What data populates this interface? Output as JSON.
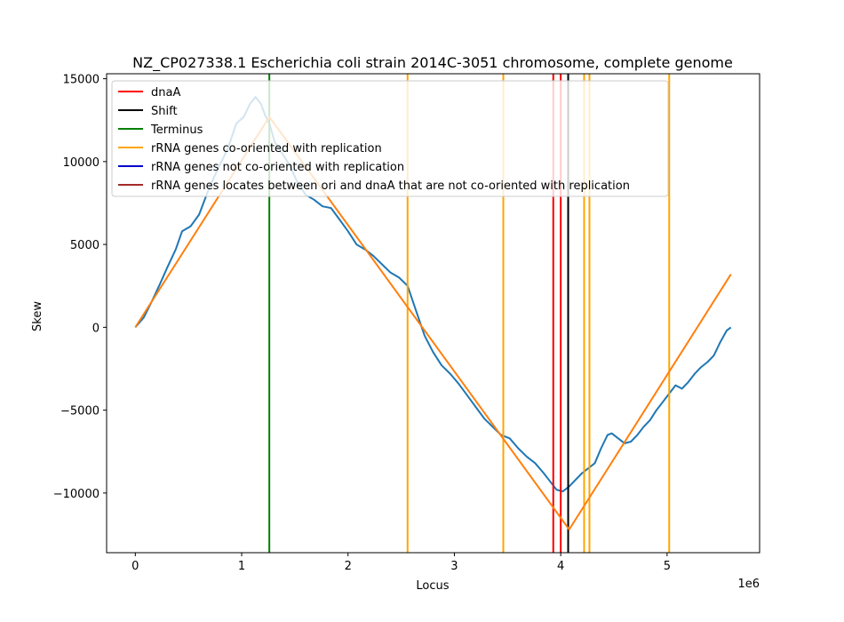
{
  "chart_data": {
    "type": "line",
    "title": "NZ_CP027338.1 Escherichia coli strain 2014C-3051 chromosome, complete genome",
    "xlabel": "Locus",
    "ylabel": "Skew",
    "x_offset_label": "1e6",
    "xlim": [
      -270000,
      5870000
    ],
    "ylim": [
      -13600,
      15300
    ],
    "xticks": [
      0,
      1000000,
      2000000,
      3000000,
      4000000,
      5000000
    ],
    "xtick_labels": [
      "0",
      "1",
      "2",
      "3",
      "4",
      "5"
    ],
    "yticks": [
      -10000,
      -5000,
      0,
      5000,
      10000,
      15000
    ],
    "ytick_labels": [
      "−10000",
      "−5000",
      "0",
      "5000",
      "10000",
      "15000"
    ],
    "grid": false,
    "legend_position": "upper-left",
    "legend": [
      {
        "label": "dnaA",
        "color": "#ff0000"
      },
      {
        "label": "Shift",
        "color": "#000000"
      },
      {
        "label": "Terminus",
        "color": "#008000"
      },
      {
        "label": "rRNA genes co-oriented with replication",
        "color": "#ffa500"
      },
      {
        "label": "rRNA genes not co-oriented with replication",
        "color": "#0000cd"
      },
      {
        "label": "rRNA genes locates between ori and dnaA that are not co-oriented with replication",
        "color": "#a52a2a"
      }
    ],
    "skew_series": {
      "color": "#1f77b4",
      "x": [
        0,
        80000,
        150000,
        230000,
        300000,
        380000,
        440000,
        520000,
        600000,
        700000,
        780000,
        870000,
        950000,
        1020000,
        1080000,
        1130000,
        1180000,
        1220000,
        1260000,
        1310000,
        1380000,
        1450000,
        1520000,
        1600000,
        1680000,
        1760000,
        1840000,
        1920000,
        2000000,
        2080000,
        2160000,
        2240000,
        2320000,
        2400000,
        2480000,
        2560000,
        2640000,
        2720000,
        2800000,
        2880000,
        2960000,
        3040000,
        3120000,
        3200000,
        3280000,
        3360000,
        3440000,
        3520000,
        3600000,
        3680000,
        3760000,
        3840000,
        3900000,
        3960000,
        4020000,
        4080000,
        4140000,
        4200000,
        4260000,
        4320000,
        4380000,
        4440000,
        4480000,
        4520000,
        4560000,
        4600000,
        4660000,
        4720000,
        4780000,
        4840000,
        4900000,
        4960000,
        5020000,
        5080000,
        5140000,
        5200000,
        5260000,
        5320000,
        5380000,
        5440000,
        5500000,
        5560000,
        5600000
      ],
      "y": [
        0,
        600,
        1500,
        2600,
        3600,
        4700,
        5800,
        6100,
        6800,
        8500,
        9600,
        10800,
        12300,
        12700,
        13500,
        13900,
        13500,
        12800,
        12300,
        11200,
        10500,
        9800,
        8800,
        8000,
        7700,
        7300,
        7200,
        6500,
        5800,
        5000,
        4700,
        4300,
        3800,
        3300,
        3000,
        2500,
        1000,
        -500,
        -1500,
        -2300,
        -2800,
        -3400,
        -4100,
        -4800,
        -5500,
        -6000,
        -6500,
        -6700,
        -7300,
        -7800,
        -8200,
        -8800,
        -9300,
        -9800,
        -9900,
        -9600,
        -9200,
        -8800,
        -8500,
        -8200,
        -7300,
        -6500,
        -6400,
        -6600,
        -6800,
        -7000,
        -6900,
        -6500,
        -6000,
        -5600,
        -5000,
        -4500,
        -4000,
        -3500,
        -3700,
        -3300,
        -2800,
        -2400,
        -2100,
        -1700,
        -900,
        -200,
        0
      ]
    },
    "fit_series": {
      "color": "#ff7f0e",
      "x": [
        0,
        1260000,
        4080000,
        5600000
      ],
      "y": [
        0,
        12700,
        -12200,
        3200
      ]
    },
    "vertical_lines": [
      {
        "x": 1260000,
        "color": "#008000"
      },
      {
        "x": 2560000,
        "color": "#ffa500"
      },
      {
        "x": 3460000,
        "color": "#ffa500"
      },
      {
        "x": 3930000,
        "color": "#ff0000"
      },
      {
        "x": 4000000,
        "color": "#ff0000"
      },
      {
        "x": 4070000,
        "color": "#000000"
      },
      {
        "x": 4220000,
        "color": "#ffa500"
      },
      {
        "x": 4270000,
        "color": "#ffa500"
      },
      {
        "x": 5020000,
        "color": "#ffa500"
      }
    ]
  }
}
